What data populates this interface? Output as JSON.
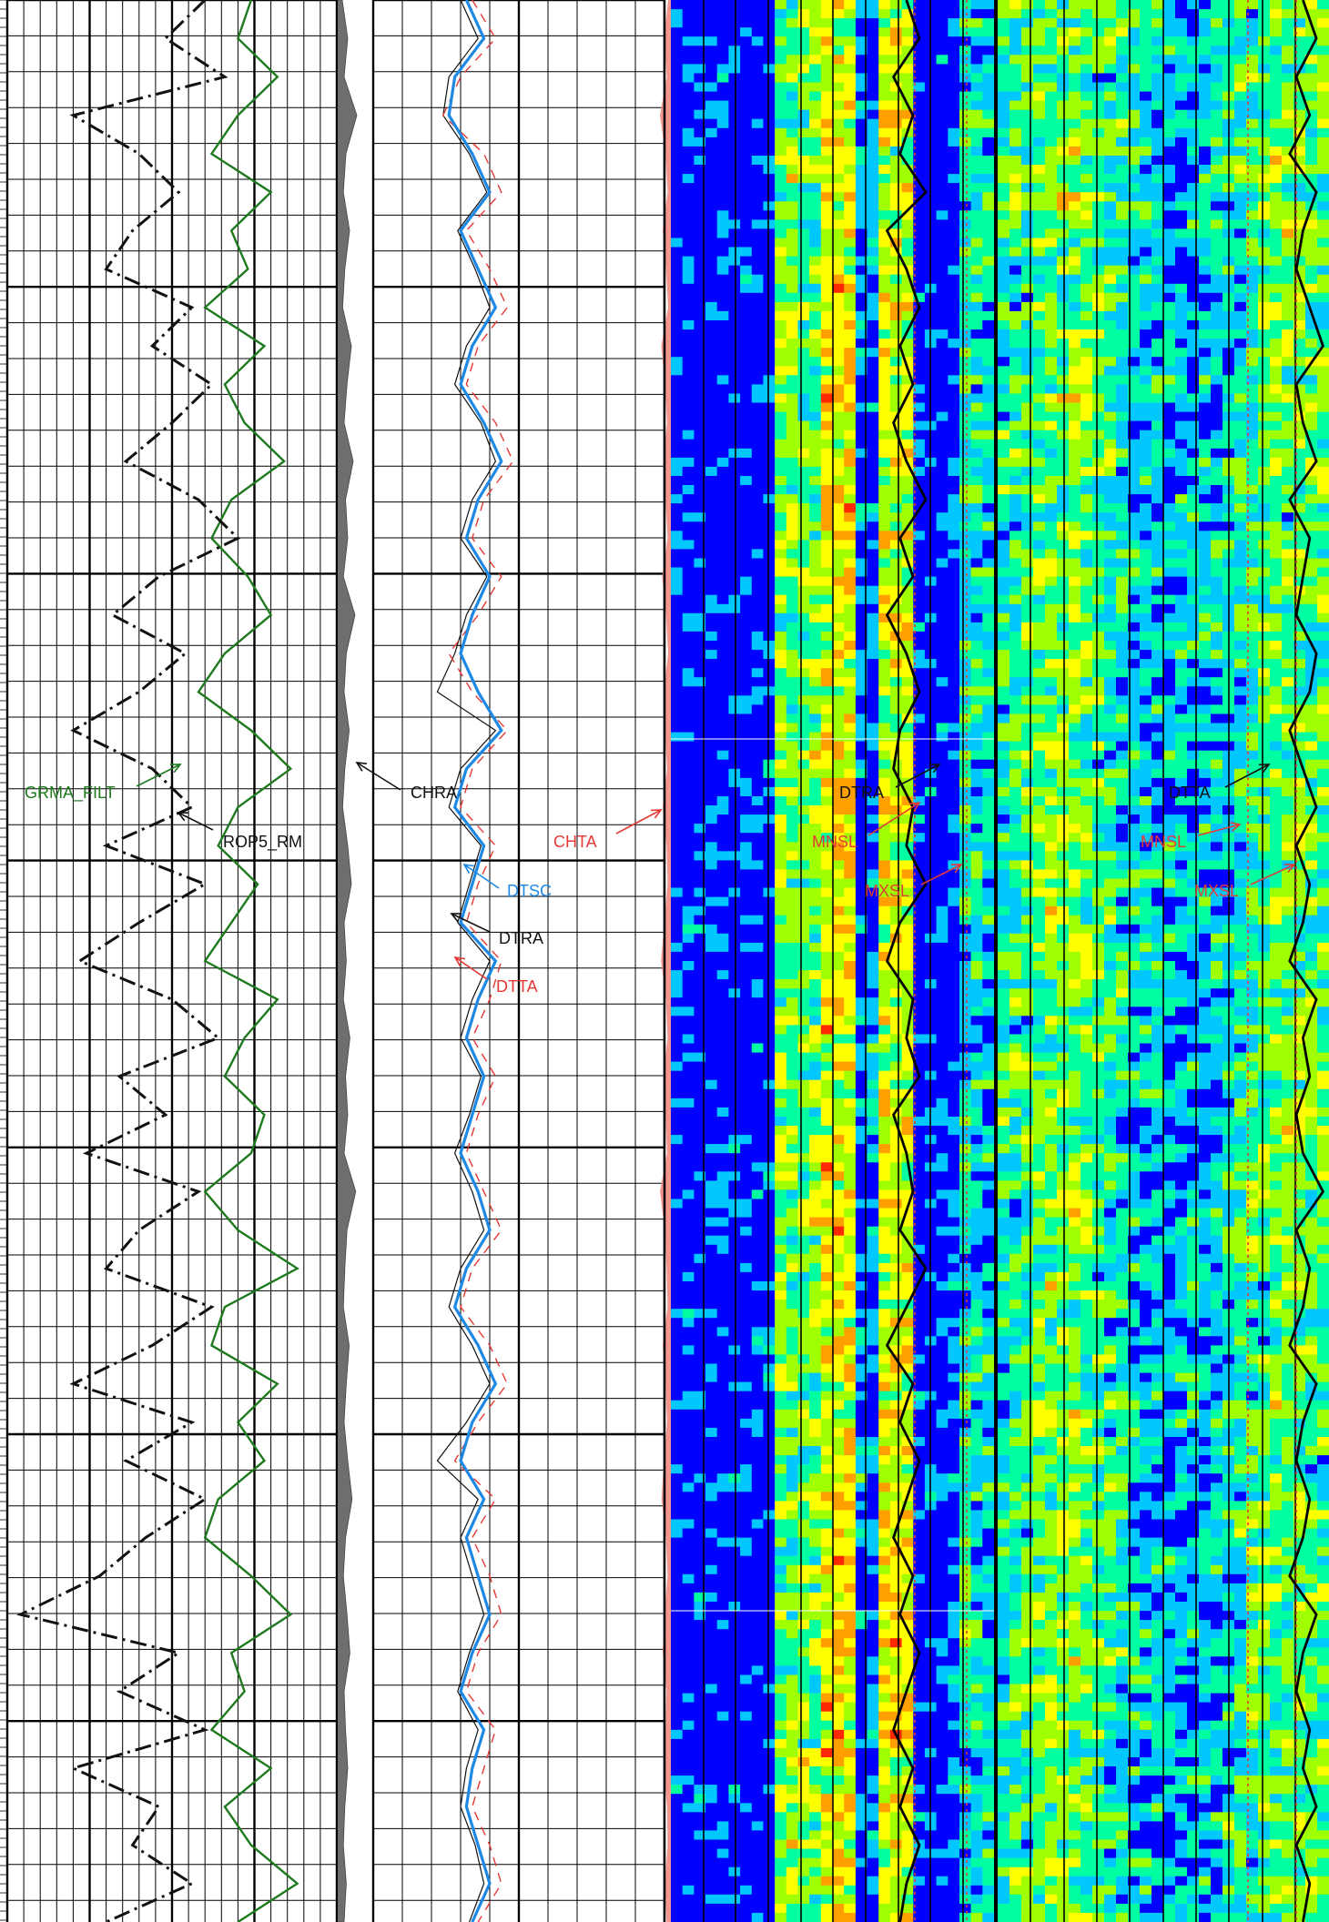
{
  "chart_data": {
    "type": "line",
    "description_free": true,
    "tracks": [
      {
        "name": "track-1",
        "curves": [
          {
            "id": "GRMA_FILT",
            "label": "GRMA_FILT",
            "color": "#1f7a1f",
            "style": "solid",
            "values": [
              0.74,
              0.7,
              0.82,
              0.7,
              0.62,
              0.8,
              0.68,
              0.73,
              0.6,
              0.78,
              0.66,
              0.72,
              0.84,
              0.68,
              0.62,
              0.73,
              0.8,
              0.66,
              0.58,
              0.74,
              0.86,
              0.7,
              0.64,
              0.76,
              0.68,
              0.6,
              0.82,
              0.72,
              0.66,
              0.78,
              0.74,
              0.6,
              0.7,
              0.88,
              0.66,
              0.62,
              0.82,
              0.7,
              0.78,
              0.64,
              0.6,
              0.74,
              0.86,
              0.68,
              0.72,
              0.62,
              0.8,
              0.66,
              0.74,
              0.88,
              0.7
            ]
          },
          {
            "id": "ROP5_RM",
            "label": "ROP5_RM",
            "color": "#111111",
            "style": "dashdot",
            "values": [
              0.6,
              0.48,
              0.66,
              0.2,
              0.4,
              0.52,
              0.38,
              0.3,
              0.56,
              0.44,
              0.62,
              0.5,
              0.36,
              0.58,
              0.7,
              0.46,
              0.32,
              0.54,
              0.4,
              0.2,
              0.44,
              0.56,
              0.3,
              0.6,
              0.4,
              0.22,
              0.5,
              0.64,
              0.34,
              0.48,
              0.24,
              0.58,
              0.4,
              0.3,
              0.62,
              0.44,
              0.2,
              0.56,
              0.36,
              0.6,
              0.42,
              0.28,
              0.04,
              0.52,
              0.34,
              0.6,
              0.2,
              0.46,
              0.38,
              0.56,
              0.3
            ]
          }
        ]
      },
      {
        "name": "track-2",
        "curves": [
          {
            "id": "CHRA",
            "label": "CHRA",
            "color": "#6e6e6e",
            "style": "fill",
            "values": [
              0.15,
              0.3,
              0.2,
              0.55,
              0.25,
              0.18,
              0.35,
              0.22,
              0.16,
              0.4,
              0.28,
              0.2,
              0.45,
              0.24,
              0.3,
              0.18,
              0.5,
              0.26,
              0.2,
              0.34,
              0.22,
              0.16,
              0.3,
              0.4,
              0.2,
              0.26,
              0.18,
              0.36,
              0.24,
              0.3,
              0.2,
              0.52,
              0.28,
              0.22,
              0.18,
              0.34,
              0.26,
              0.2,
              0.3,
              0.42,
              0.24,
              0.18,
              0.28,
              0.36,
              0.2,
              0.24,
              0.3,
              0.22,
              0.18,
              0.26,
              0.2
            ]
          }
        ]
      },
      {
        "name": "track-3",
        "curves": [
          {
            "id": "DTSC",
            "label": "DTSC",
            "color": "#1e88e5",
            "style": "solid",
            "values": [
              0.32,
              0.38,
              0.28,
              0.26,
              0.34,
              0.4,
              0.3,
              0.36,
              0.42,
              0.34,
              0.3,
              0.38,
              0.44,
              0.36,
              0.32,
              0.4,
              0.34,
              0.3,
              0.36,
              0.44,
              0.32,
              0.28,
              0.38,
              0.34,
              0.3,
              0.42,
              0.36,
              0.32,
              0.38,
              0.34,
              0.3,
              0.36,
              0.4,
              0.32,
              0.28,
              0.36,
              0.42,
              0.34,
              0.3,
              0.38,
              0.32,
              0.36,
              0.4,
              0.34,
              0.3,
              0.38,
              0.34,
              0.32,
              0.36,
              0.4,
              0.34
            ]
          },
          {
            "id": "DTRA",
            "label": "DTRA",
            "color": "#111111",
            "style": "thin",
            "values": [
              0.3,
              0.36,
              0.26,
              0.24,
              0.33,
              0.39,
              0.29,
              0.35,
              0.4,
              0.32,
              0.28,
              0.37,
              0.42,
              0.34,
              0.3,
              0.39,
              0.32,
              0.28,
              0.22,
              0.42,
              0.3,
              0.26,
              0.37,
              0.33,
              0.29,
              0.4,
              0.34,
              0.3,
              0.37,
              0.33,
              0.28,
              0.34,
              0.38,
              0.3,
              0.26,
              0.34,
              0.4,
              0.32,
              0.22,
              0.36,
              0.3,
              0.34,
              0.38,
              0.33,
              0.29,
              0.36,
              0.32,
              0.3,
              0.35,
              0.38,
              0.33
            ]
          },
          {
            "id": "DTTA",
            "label": "DTTA",
            "color": "#e53935",
            "style": "dashed",
            "values": [
              0.34,
              0.42,
              0.3,
              0.24,
              0.38,
              0.44,
              0.32,
              0.4,
              0.46,
              0.36,
              0.32,
              0.42,
              0.48,
              0.38,
              0.34,
              0.44,
              0.36,
              0.26,
              0.34,
              0.46,
              0.34,
              0.3,
              0.42,
              0.36,
              0.32,
              0.44,
              0.4,
              0.34,
              0.42,
              0.36,
              0.32,
              0.38,
              0.44,
              0.34,
              0.3,
              0.4,
              0.46,
              0.36,
              0.28,
              0.42,
              0.34,
              0.4,
              0.44,
              0.36,
              0.32,
              0.42,
              0.38,
              0.34,
              0.4,
              0.44,
              0.36
            ]
          }
        ]
      },
      {
        "name": "track-4",
        "curves": [
          {
            "id": "CHTA",
            "label": "CHTA",
            "color": "#f28b82",
            "style": "fill-left",
            "values": [
              0.1,
              0.25,
              0.15,
              0.4,
              0.2,
              0.12,
              0.3,
              0.18,
              0.1,
              0.35,
              0.22,
              0.14,
              0.28,
              0.2,
              0.12,
              0.32,
              0.18,
              0.1,
              0.26,
              0.22,
              0.14,
              0.3,
              0.16,
              0.12,
              0.24,
              0.36,
              0.18,
              0.12,
              0.28,
              0.2,
              0.14,
              0.4,
              0.22,
              0.16,
              0.12,
              0.3,
              0.2,
              0.14,
              0.26,
              0.34,
              0.18,
              0.12,
              0.24,
              0.3,
              0.16,
              0.2,
              0.26,
              0.14,
              0.12,
              0.22,
              0.16
            ]
          }
        ]
      },
      {
        "name": "track-5",
        "image": "coherence-map-receiver",
        "curves": [
          {
            "id": "DTRA",
            "label": "DTRA",
            "color": "#000000",
            "style": "solid",
            "values": [
              0.56,
              0.6,
              0.52,
              0.58,
              0.54,
              0.62,
              0.5,
              0.56,
              0.6,
              0.54,
              0.58,
              0.52,
              0.56,
              0.62,
              0.54,
              0.58,
              0.5,
              0.56,
              0.6,
              0.54,
              0.52,
              0.58,
              0.56,
              0.62,
              0.54,
              0.5,
              0.58,
              0.56,
              0.6,
              0.52,
              0.56,
              0.58,
              0.54,
              0.62,
              0.56,
              0.5,
              0.58,
              0.54,
              0.6,
              0.56,
              0.52,
              0.58,
              0.54,
              0.6,
              0.56,
              0.52,
              0.58,
              0.54,
              0.6,
              0.56,
              0.54
            ]
          },
          {
            "id": "MNSL",
            "label": "MNSL",
            "color": "#e53935",
            "style": "dotted"
          },
          {
            "id": "MXSL",
            "label": "MXSL",
            "color": "#e53935",
            "style": "dotted"
          }
        ]
      },
      {
        "name": "track-6",
        "image": "coherence-map-transmitter",
        "curves": [
          {
            "id": "DTTA",
            "label": "DTTA",
            "color": "#000000",
            "style": "solid",
            "values": [
              0.84,
              0.88,
              0.82,
              0.86,
              0.8,
              0.88,
              0.84,
              0.82,
              0.86,
              0.9,
              0.82,
              0.84,
              0.88,
              0.8,
              0.86,
              0.84,
              0.82,
              0.88,
              0.86,
              0.8,
              0.84,
              0.88,
              0.82,
              0.86,
              0.84,
              0.8,
              0.88,
              0.84,
              0.86,
              0.82,
              0.84,
              0.9,
              0.82,
              0.86,
              0.84,
              0.8,
              0.88,
              0.84,
              0.82,
              0.86,
              0.84,
              0.8,
              0.88,
              0.84,
              0.82,
              0.86,
              0.84,
              0.88,
              0.82,
              0.86,
              0.84
            ]
          },
          {
            "id": "MNSL",
            "label": "MNSL",
            "color": "#e53935",
            "style": "dotted"
          },
          {
            "id": "MXSL",
            "label": "MXSL",
            "color": "#e53935",
            "style": "dotted"
          }
        ]
      }
    ],
    "colormap": [
      "#0000ff",
      "#00c8ff",
      "#00ffa0",
      "#a0ff00",
      "#ffff00",
      "#ffa000",
      "#ff2800"
    ]
  }
}
